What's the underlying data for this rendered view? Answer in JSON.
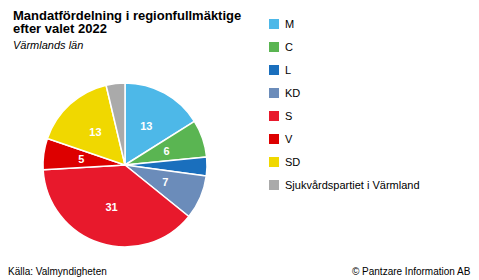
{
  "chart_data": {
    "type": "pie",
    "title": "Mandatfördelning i regionfullmäktige efter valet 2022",
    "subtitle": "Värmlands län",
    "categories": [
      "M",
      "C",
      "L",
      "KD",
      "S",
      "V",
      "SD",
      "Sjukvårdspartiet i Värmland"
    ],
    "values": [
      13,
      6,
      3,
      7,
      31,
      5,
      13,
      3
    ],
    "value_labels": [
      "13",
      "6",
      null,
      "7",
      "31",
      "5",
      "13",
      null
    ],
    "colors": [
      "#4db8e8",
      "#5ab552",
      "#1a6fbd",
      "#6b8cba",
      "#e8192c",
      "#dd0000",
      "#f0d800",
      "#aaaaaa"
    ],
    "data_labels": true,
    "legend": "right",
    "annotations": [
      "Källa: Valmyndigheten",
      "© Pantzare Information AB"
    ]
  }
}
